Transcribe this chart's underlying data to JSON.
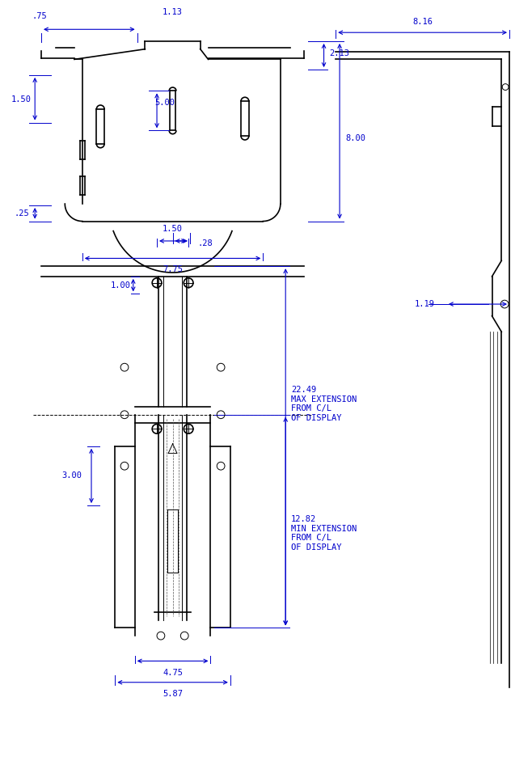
{
  "bg_color": "#ffffff",
  "line_color": "#000000",
  "dim_color": "#0000cc",
  "fig_width": 6.54,
  "fig_height": 9.44,
  "dpi": 100,
  "dimensions": {
    "top_width": ".75",
    "center_width": "1.13",
    "height_2_13": "2.13",
    "height_8": "8.00",
    "height_5": "5.00",
    "left_1_50": "1.50",
    "left_025": ".25",
    "dim_28": ".28",
    "dim_775": "7.75",
    "dim_150_mid": "1.50",
    "dim_100": "1.00",
    "dim_2249": "22.49",
    "dim_1282": "12.82",
    "dim_300": "3.00",
    "dim_475": "4.75",
    "dim_587": "5.87",
    "side_816": "8.16",
    "side_119": "1.19"
  },
  "annotations": {
    "max_ext": "22.49\nMAX EXTENSION\nFROM C/L\nOF DISPLAY",
    "min_ext": "12.82\nMIN EXTENSION\nFROM C/L\nOF DISPLAY"
  }
}
